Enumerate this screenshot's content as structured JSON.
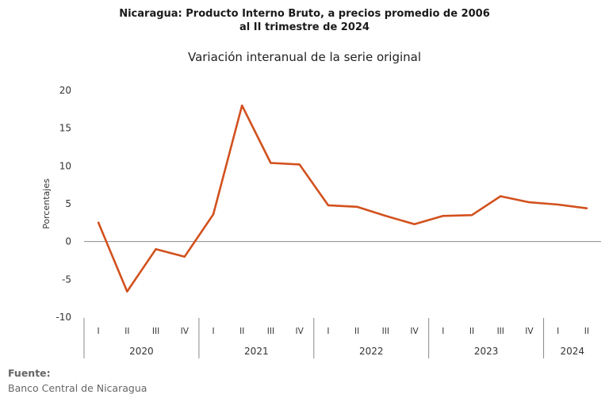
{
  "title_line1": "Nicaragua: Producto Interno Bruto, a precios promedio de 2006",
  "title_line2": "al II trimestre de 2024",
  "chart_data": {
    "type": "line",
    "title": "Nicaragua: Producto Interno Bruto, a precios promedio de 2006 al II trimestre de 2024",
    "subtitle": "Variación interanual de la serie original",
    "ylabel": "Porcentajes",
    "xlabel": "",
    "ylim": [
      -10,
      20
    ],
    "yticks": [
      20,
      15,
      10,
      5,
      0,
      -5,
      -10
    ],
    "grid": false,
    "legend": "none",
    "years": [
      {
        "label": "2020",
        "quarters": [
          "I",
          "II",
          "III",
          "IV"
        ]
      },
      {
        "label": "2021",
        "quarters": [
          "I",
          "II",
          "III",
          "IV"
        ]
      },
      {
        "label": "2022",
        "quarters": [
          "I",
          "II",
          "III",
          "IV"
        ]
      },
      {
        "label": "2023",
        "quarters": [
          "I",
          "II",
          "III",
          "IV"
        ]
      },
      {
        "label": "2024",
        "quarters": [
          "I",
          "II"
        ]
      }
    ],
    "series": [
      {
        "color": "#d2511e",
        "values": [
          2.5,
          -6.6,
          -1.0,
          -2.0,
          3.6,
          18.0,
          10.4,
          10.2,
          4.8,
          4.6,
          3.4,
          2.3,
          3.4,
          3.5,
          6.0,
          5.2,
          4.9,
          4.4
        ]
      }
    ]
  },
  "source": {
    "label": "Fuente:",
    "text": "Banco Central de Nicaragua"
  }
}
